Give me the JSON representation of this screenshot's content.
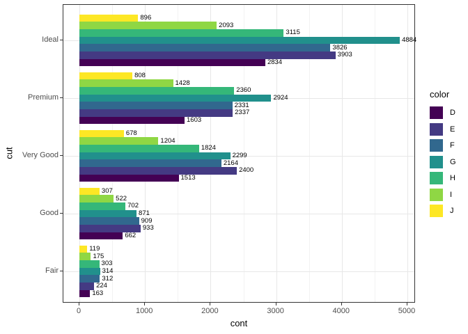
{
  "chart_data": {
    "type": "bar",
    "orientation": "horizontal",
    "title": "",
    "xlabel": "cont",
    "ylabel": "cut",
    "categories": [
      "Ideal",
      "Premium",
      "Very Good",
      "Good",
      "Fair"
    ],
    "series": [
      {
        "name": "D",
        "color": "#440154",
        "values": [
          2834,
          1603,
          1513,
          662,
          163
        ]
      },
      {
        "name": "E",
        "color": "#443A83",
        "values": [
          3903,
          2337,
          2400,
          933,
          224
        ]
      },
      {
        "name": "F",
        "color": "#31688E",
        "values": [
          3826,
          2331,
          2164,
          909,
          312
        ]
      },
      {
        "name": "G",
        "color": "#21908C",
        "values": [
          4884,
          2924,
          2299,
          871,
          314
        ]
      },
      {
        "name": "H",
        "color": "#35B779",
        "values": [
          3115,
          2360,
          1824,
          702,
          303
        ]
      },
      {
        "name": "I",
        "color": "#8FD744",
        "values": [
          2093,
          1428,
          1204,
          522,
          175
        ]
      },
      {
        "name": "J",
        "color": "#FDE725",
        "values": [
          896,
          808,
          678,
          307,
          119
        ]
      }
    ],
    "stack_order_top_to_bottom": [
      "J",
      "I",
      "H",
      "G",
      "F",
      "E",
      "D"
    ],
    "bar_value_labels_shown": true,
    "x_ticks": [
      0,
      1000,
      2000,
      3000,
      4000,
      5000
    ],
    "x_minor_ticks": [
      500,
      1500,
      2500,
      3500,
      4500
    ],
    "xlim": [
      0,
      5000
    ],
    "grid": true,
    "legend_title": "color",
    "legend_position": "right",
    "panel_border_color": "#333333",
    "axis_text_color": "#4d4d4d"
  }
}
